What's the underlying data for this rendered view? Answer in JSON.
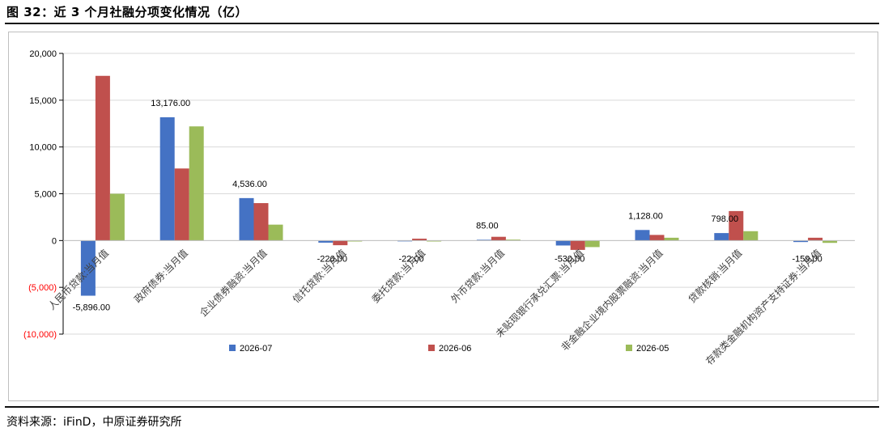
{
  "title": "图 32：近 3 个月社融分项变化情况（亿）",
  "source": "资料来源：iFinD，中原证券研究所",
  "colors": {
    "2026-07": "#4472C4",
    "2026-06": "#C0504D",
    "2026-05": "#9BBB59",
    "negative_tick": "#FF0000",
    "gridline": "#D9D9D9"
  },
  "chart_data": {
    "type": "bar",
    "title": "",
    "xlabel": "",
    "ylabel": "",
    "ylim": [
      -10000,
      20000
    ],
    "yticks": [
      20000,
      15000,
      10000,
      5000,
      0,
      -5000,
      -10000
    ],
    "ytick_labels": [
      "20,000",
      "15,000",
      "10,000",
      "5,000",
      "0",
      "(5,000)",
      "(10,000)"
    ],
    "grid": true,
    "legend_position": "bottom",
    "categories": [
      "人民币贷款:当月值",
      "政府债券:当月值",
      "企业债券融资:当月值",
      "信托贷款:当月值",
      "委托贷款:当月值",
      "外币贷款:当月值",
      "未贴现银行承兑汇票:当月值",
      "非金融企业境内股票融资:当月值",
      "贷款核销:当月值",
      "存款类金融机构资产支持证券:当月值"
    ],
    "series": [
      {
        "name": "2026-07",
        "values": [
          -5896,
          13176,
          4536,
          -226,
          -22,
          85,
          -530,
          1128,
          798,
          -159
        ]
      },
      {
        "name": "2026-06",
        "values": [
          17600,
          7700,
          4000,
          -500,
          200,
          400,
          -1000,
          600,
          3150,
          300
        ]
      },
      {
        "name": "2026-05",
        "values": [
          5000,
          12200,
          1700,
          -100,
          -100,
          100,
          -700,
          300,
          1000,
          -250
        ]
      }
    ],
    "data_labels": [
      "-5,896.00",
      "13,176.00",
      "4,536.00",
      "-226.00",
      "-22.00",
      "85.00",
      "-530.00",
      "1,128.00",
      "798.00",
      "-159.00"
    ]
  }
}
